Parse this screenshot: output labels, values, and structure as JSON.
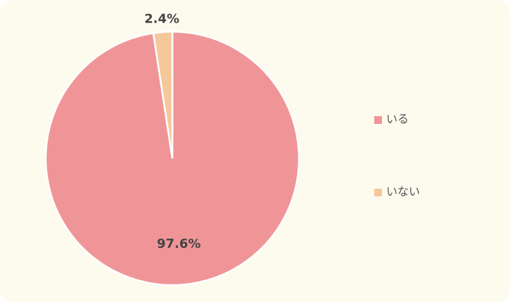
{
  "chart_data": {
    "type": "pie",
    "categories": [
      "いる",
      "いない"
    ],
    "values": [
      97.6,
      2.4
    ],
    "value_labels": [
      "97.6%",
      "2.4%"
    ],
    "colors": [
      "#f09597",
      "#f5c89c"
    ],
    "legend": "right"
  }
}
